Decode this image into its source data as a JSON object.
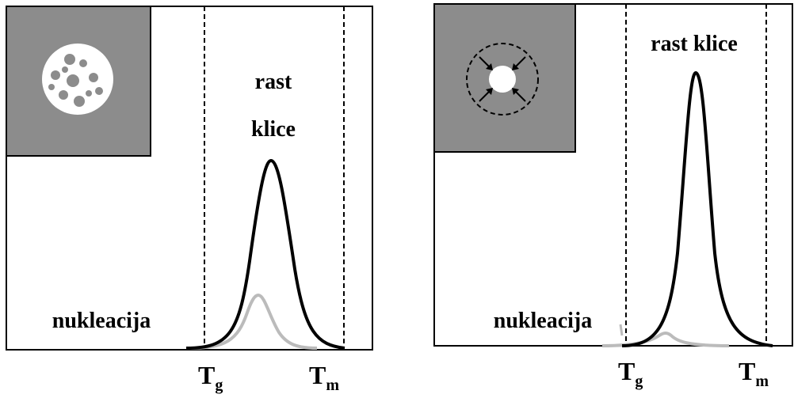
{
  "panels": [
    {
      "growth_label": [
        "rast",
        "klice"
      ],
      "nucleation_label": "nukleacija",
      "tg": {
        "symbol": "T",
        "subscript": "g"
      },
      "tm": {
        "symbol": "T",
        "subscript": "m"
      }
    },
    {
      "growth_label": [
        "rast klice"
      ],
      "nucleation_label": "nukleacija",
      "tg": {
        "symbol": "T",
        "subscript": "g"
      },
      "tm": {
        "symbol": "T",
        "subscript": "m"
      }
    }
  ]
}
